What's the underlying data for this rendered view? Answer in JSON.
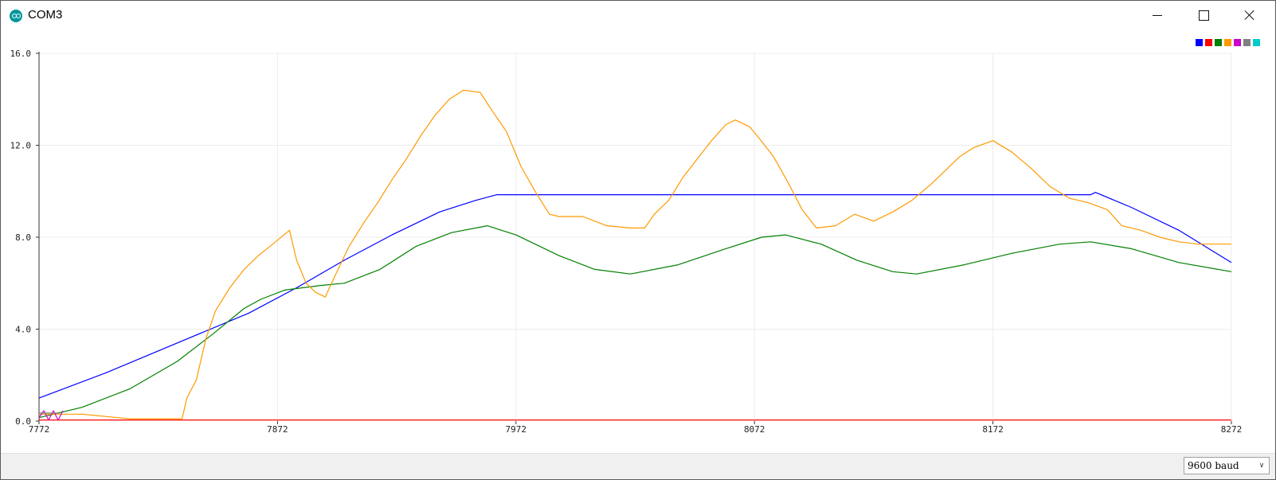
{
  "window": {
    "title": "COM3"
  },
  "legend": {
    "colors": [
      "#0000ff",
      "#ff0000",
      "#008000",
      "#ff9900",
      "#cc00cc",
      "#808080",
      "#00cccc"
    ]
  },
  "statusbar": {
    "baud_selected": "9600 baud"
  },
  "chart_data": {
    "type": "line",
    "xlim": [
      7772,
      8272
    ],
    "ylim": [
      0,
      16
    ],
    "x_ticks": [
      "7772",
      "7872",
      "7972",
      "8072",
      "8172",
      "8272"
    ],
    "y_ticks": [
      "0.0",
      "4.0",
      "8.0",
      "12.0",
      "16.0"
    ],
    "grid": true,
    "series": [
      {
        "color": "#0000ff",
        "points": [
          [
            7772,
            1.0
          ],
          [
            7800,
            2.1
          ],
          [
            7830,
            3.4
          ],
          [
            7860,
            4.7
          ],
          [
            7880,
            5.8
          ],
          [
            7900,
            7.0
          ],
          [
            7920,
            8.1
          ],
          [
            7940,
            9.1
          ],
          [
            7955,
            9.6
          ],
          [
            7964,
            9.85
          ],
          [
            8000,
            9.85
          ],
          [
            8100,
            9.85
          ],
          [
            8200,
            9.85
          ],
          [
            8213,
            9.85
          ],
          [
            8215,
            9.95
          ],
          [
            8230,
            9.3
          ],
          [
            8250,
            8.3
          ],
          [
            8272,
            6.9
          ]
        ]
      },
      {
        "color": "#ff0000",
        "points": [
          [
            7772,
            0.05
          ],
          [
            8272,
            0.05
          ]
        ]
      },
      {
        "color": "#008000",
        "points": [
          [
            7772,
            0.15
          ],
          [
            7790,
            0.6
          ],
          [
            7810,
            1.4
          ],
          [
            7830,
            2.6
          ],
          [
            7845,
            3.8
          ],
          [
            7858,
            4.9
          ],
          [
            7865,
            5.3
          ],
          [
            7875,
            5.7
          ],
          [
            7890,
            5.9
          ],
          [
            7900,
            6.0
          ],
          [
            7915,
            6.6
          ],
          [
            7930,
            7.6
          ],
          [
            7945,
            8.2
          ],
          [
            7960,
            8.5
          ],
          [
            7972,
            8.1
          ],
          [
            7990,
            7.2
          ],
          [
            8005,
            6.6
          ],
          [
            8020,
            6.4
          ],
          [
            8040,
            6.8
          ],
          [
            8060,
            7.5
          ],
          [
            8075,
            8.0
          ],
          [
            8085,
            8.1
          ],
          [
            8100,
            7.7
          ],
          [
            8115,
            7.0
          ],
          [
            8130,
            6.5
          ],
          [
            8140,
            6.4
          ],
          [
            8160,
            6.8
          ],
          [
            8180,
            7.3
          ],
          [
            8200,
            7.7
          ],
          [
            8213,
            7.8
          ],
          [
            8230,
            7.5
          ],
          [
            8250,
            6.9
          ],
          [
            8272,
            6.5
          ]
        ]
      },
      {
        "color": "#ff9900",
        "points": [
          [
            7772,
            0.3
          ],
          [
            7790,
            0.3
          ],
          [
            7800,
            0.2
          ],
          [
            7810,
            0.1
          ],
          [
            7832,
            0.1
          ],
          [
            7834,
            1.0
          ],
          [
            7838,
            1.8
          ],
          [
            7842,
            3.6
          ],
          [
            7846,
            4.8
          ],
          [
            7852,
            5.8
          ],
          [
            7858,
            6.6
          ],
          [
            7864,
            7.2
          ],
          [
            7870,
            7.7
          ],
          [
            7877,
            8.3
          ],
          [
            7880,
            7.0
          ],
          [
            7884,
            6.0
          ],
          [
            7888,
            5.6
          ],
          [
            7892,
            5.4
          ],
          [
            7896,
            6.3
          ],
          [
            7902,
            7.6
          ],
          [
            7908,
            8.6
          ],
          [
            7914,
            9.5
          ],
          [
            7920,
            10.5
          ],
          [
            7926,
            11.4
          ],
          [
            7932,
            12.4
          ],
          [
            7938,
            13.3
          ],
          [
            7944,
            14.0
          ],
          [
            7950,
            14.4
          ],
          [
            7957,
            14.3
          ],
          [
            7962,
            13.5
          ],
          [
            7968,
            12.6
          ],
          [
            7974,
            11.1
          ],
          [
            7980,
            10.0
          ],
          [
            7986,
            9.0
          ],
          [
            7990,
            8.9
          ],
          [
            8000,
            8.9
          ],
          [
            8010,
            8.5
          ],
          [
            8020,
            8.4
          ],
          [
            8026,
            8.4
          ],
          [
            8030,
            9.0
          ],
          [
            8036,
            9.6
          ],
          [
            8042,
            10.6
          ],
          [
            8048,
            11.4
          ],
          [
            8054,
            12.2
          ],
          [
            8060,
            12.9
          ],
          [
            8064,
            13.1
          ],
          [
            8070,
            12.8
          ],
          [
            8074,
            12.3
          ],
          [
            8080,
            11.5
          ],
          [
            8086,
            10.4
          ],
          [
            8092,
            9.2
          ],
          [
            8098,
            8.4
          ],
          [
            8106,
            8.5
          ],
          [
            8114,
            9.0
          ],
          [
            8122,
            8.7
          ],
          [
            8130,
            9.1
          ],
          [
            8138,
            9.6
          ],
          [
            8146,
            10.3
          ],
          [
            8152,
            10.9
          ],
          [
            8158,
            11.5
          ],
          [
            8164,
            11.9
          ],
          [
            8172,
            12.2
          ],
          [
            8180,
            11.7
          ],
          [
            8188,
            11.0
          ],
          [
            8196,
            10.2
          ],
          [
            8204,
            9.7
          ],
          [
            8212,
            9.5
          ],
          [
            8220,
            9.2
          ],
          [
            8226,
            8.5
          ],
          [
            8234,
            8.3
          ],
          [
            8242,
            8.0
          ],
          [
            8250,
            7.8
          ],
          [
            8258,
            7.7
          ],
          [
            8265,
            7.7
          ],
          [
            8272,
            7.7
          ]
        ]
      },
      {
        "color": "#cc00cc",
        "points": [
          [
            7772,
            0.15
          ],
          [
            7774,
            0.45
          ],
          [
            7776,
            0.05
          ],
          [
            7778,
            0.45
          ],
          [
            7780,
            0.05
          ],
          [
            7782,
            0.45
          ]
        ]
      },
      {
        "color": "#808080",
        "points": [
          [
            7772,
            0.35
          ],
          [
            7780,
            0.35
          ]
        ]
      }
    ]
  }
}
